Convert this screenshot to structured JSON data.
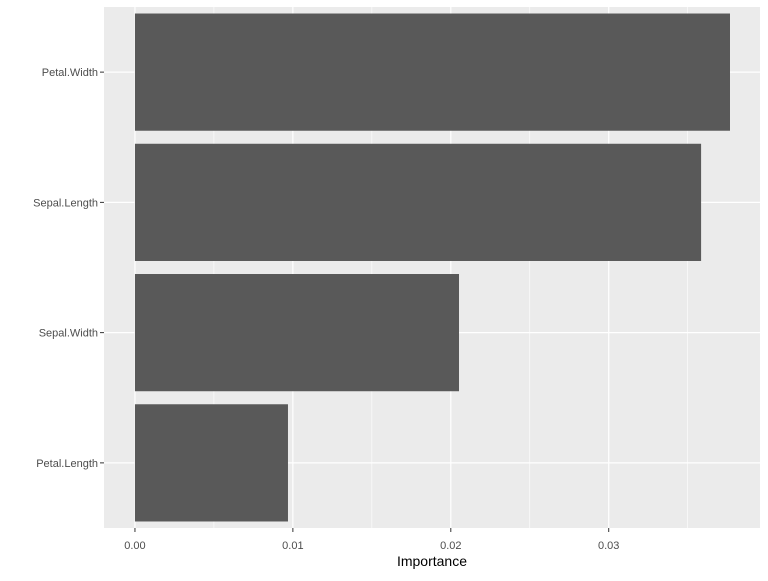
{
  "chart_data": {
    "type": "bar",
    "orientation": "horizontal",
    "categories": [
      "Petal.Length",
      "Sepal.Width",
      "Sepal.Length",
      "Petal.Width"
    ],
    "values": [
      0.00969,
      0.02052,
      0.03585,
      0.03768
    ],
    "title": "",
    "xlabel": "Importance",
    "ylabel": "",
    "xlim": [
      -0.00196,
      0.03958
    ],
    "xticks": [
      0.0,
      0.01,
      0.02,
      0.03
    ],
    "xtick_labels": [
      "0.00",
      "0.01",
      "0.02",
      "0.03"
    ],
    "grid": true,
    "colors": {
      "bar": "#595959",
      "panel": "#ebebeb",
      "grid": "#ffffff"
    }
  }
}
